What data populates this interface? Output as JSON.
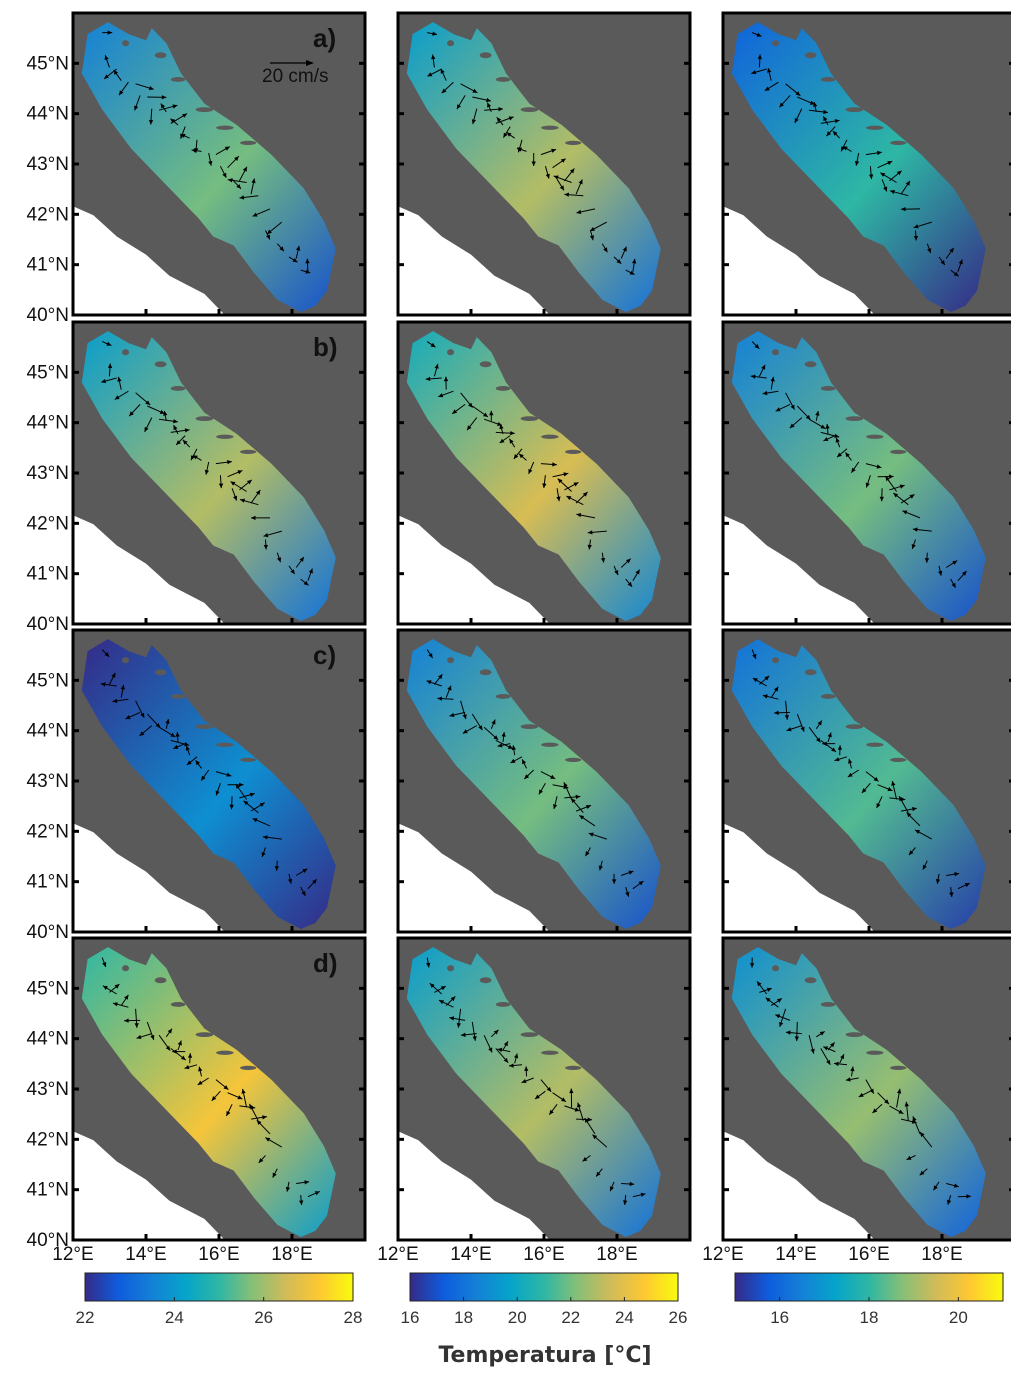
{
  "chart_data": {
    "type": "heatmap",
    "description_printed": "",
    "rows": [
      {
        "label": "a)"
      },
      {
        "label": "b)"
      },
      {
        "label": "c)"
      },
      {
        "label": "d)"
      }
    ],
    "columns": [
      {
        "colorbar": {
          "min": 22,
          "max": 28,
          "ticks": [
            22,
            24,
            26,
            28
          ]
        }
      },
      {
        "colorbar": {
          "min": 16,
          "max": 26,
          "ticks": [
            16,
            18,
            20,
            22,
            24,
            26
          ]
        }
      },
      {
        "colorbar": {
          "min": 15,
          "max": 21,
          "ticks": [
            16,
            18,
            20
          ]
        }
      }
    ],
    "lat_ticks": [
      "40°N",
      "41°N",
      "42°N",
      "43°N",
      "44°N",
      "45°N"
    ],
    "lat_tick_values": [
      40,
      41,
      42,
      43,
      44,
      45
    ],
    "lon_ticks": [
      "12°E",
      "14°E",
      "16°E",
      "18°E"
    ],
    "lon_tick_values": [
      12,
      14,
      16,
      18
    ],
    "lon_range": [
      12,
      20
    ],
    "lat_range": [
      40,
      46
    ],
    "velocity_scale_label": "20 cm/s",
    "colorbar_label": "Temperatura [°C]",
    "colormap": "parula",
    "land_color": "#5a5a5a",
    "panel_levels": [
      [
        0.45,
        0.55,
        0.15,
        0.7
      ],
      [
        0.55,
        0.62,
        0.45,
        0.55
      ],
      [
        0.35,
        0.45,
        0.4,
        0.5
      ]
    ]
  }
}
